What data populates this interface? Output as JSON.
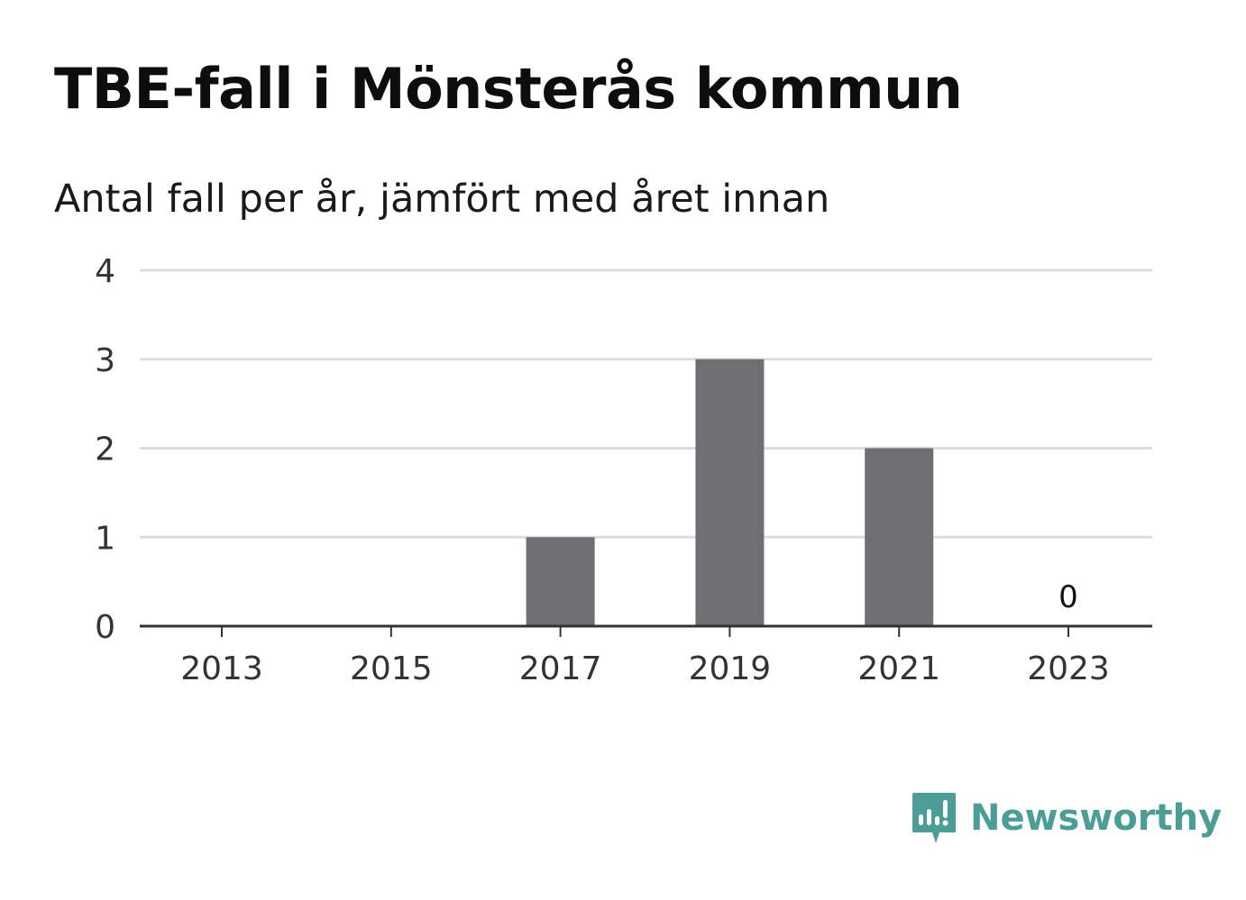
{
  "title": "TBE-fall i Mönsterås kommun",
  "subtitle": "Antal fall per år, jämfört med året innan",
  "chart_data": {
    "type": "bar",
    "x": [
      2013,
      2014,
      2015,
      2016,
      2017,
      2018,
      2019,
      2020,
      2021,
      2022,
      2023
    ],
    "values": [
      0,
      0,
      0,
      0,
      1,
      0,
      3,
      0,
      2,
      0,
      0
    ],
    "x_tick_labels": [
      "2013",
      "2015",
      "2017",
      "2019",
      "2021",
      "2023"
    ],
    "y_tick_labels": [
      "0",
      "1",
      "2",
      "3",
      "4"
    ],
    "ylim": [
      0,
      4
    ],
    "value_labels": [
      {
        "x": 2023,
        "text": "0"
      }
    ],
    "grid": true,
    "bar_color": "#6f6e73"
  },
  "brand": {
    "name": "Newsworthy",
    "color": "#4b9e98",
    "icon": "newsworthy-logo-icon"
  }
}
